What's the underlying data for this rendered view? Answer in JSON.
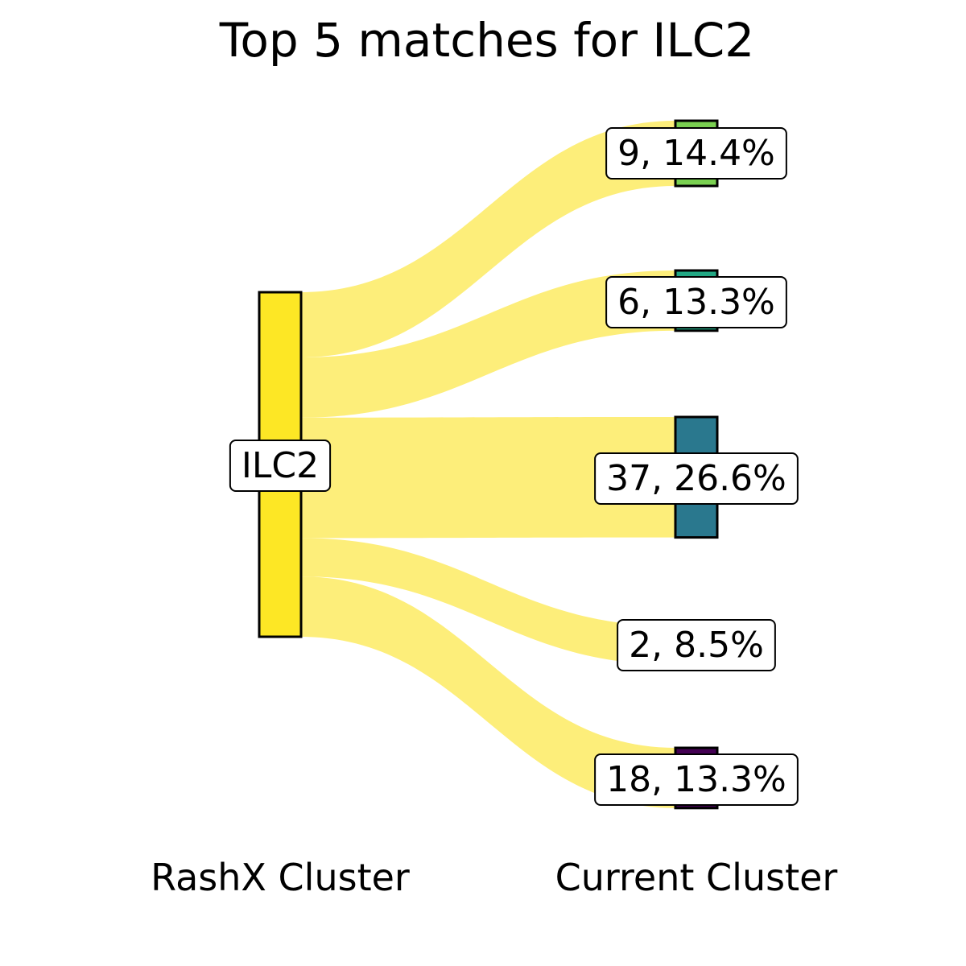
{
  "chart_data": {
    "type": "sankey",
    "title": "Top 5 matches for ILC2",
    "left_axis_label": "RashX Cluster",
    "right_axis_label": "Current Cluster",
    "source": {
      "label": "ILC2",
      "color": "#fde725"
    },
    "link_color": "#fdee7a",
    "targets": [
      {
        "label": "9, 14.4%",
        "value": 9,
        "percent": 14.4,
        "color": "#7ad151"
      },
      {
        "label": "6, 13.3%",
        "value": 6,
        "percent": 13.3,
        "color": "#22a884"
      },
      {
        "label": "37, 26.6%",
        "value": 37,
        "percent": 26.6,
        "color": "#2a788e"
      },
      {
        "label": "2, 8.5%",
        "value": 2,
        "percent": 8.5,
        "color": "#414487"
      },
      {
        "label": "18, 13.3%",
        "value": 18,
        "percent": 13.3,
        "color": "#440154"
      }
    ]
  }
}
